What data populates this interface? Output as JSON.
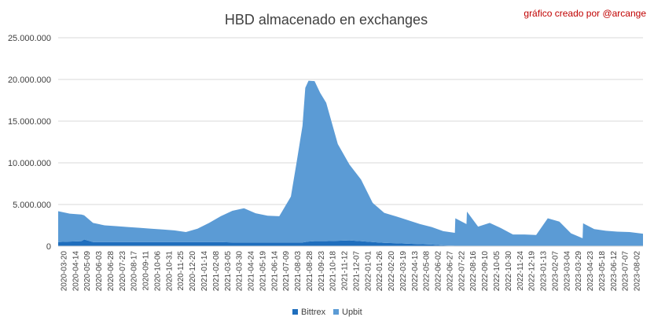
{
  "chart_data": {
    "type": "area",
    "stacked": true,
    "title": "HBD almacenado en exchanges",
    "credit": "gráfico creado por @arcange",
    "xlabel": "",
    "ylabel": "",
    "ylim": [
      0,
      25000000
    ],
    "grid": true,
    "legend_position": "bottom",
    "y_ticks": [
      {
        "value": 0,
        "label": "0"
      },
      {
        "value": 5000000,
        "label": "5.000.000"
      },
      {
        "value": 10000000,
        "label": "10.000.000"
      },
      {
        "value": 15000000,
        "label": "15.000.000"
      },
      {
        "value": 20000000,
        "label": "20.000.000"
      },
      {
        "value": 25000000,
        "label": "25.000.000"
      }
    ],
    "x_tick_labels": [
      "2020-03-20",
      "2020-04-14",
      "2020-05-09",
      "2020-06-03",
      "2020-06-28",
      "2020-07-23",
      "2020-08-17",
      "2020-09-11",
      "2020-10-06",
      "2020-10-31",
      "2020-11-25",
      "2020-12-20",
      "2021-01-14",
      "2021-02-08",
      "2021-03-05",
      "2021-03-30",
      "2021-04-24",
      "2021-05-19",
      "2021-06-14",
      "2021-07-09",
      "2021-08-03",
      "2021-08-28",
      "2021-09-23",
      "2021-10-18",
      "2021-11-12",
      "2021-12-07",
      "2022-01-01",
      "2022-01-26",
      "2022-02-20",
      "2022-03-19",
      "2022-04-13",
      "2022-05-08",
      "2022-06-02",
      "2022-06-27",
      "2022-07-22",
      "2022-08-16",
      "2022-09-10",
      "2022-10-05",
      "2022-10-30",
      "2022-11-24",
      "2022-12-19",
      "2023-01-13",
      "2023-02-07",
      "2023-03-04",
      "2023-03-29",
      "2023-04-23",
      "2023-05-18",
      "2023-06-12",
      "2023-07-07",
      "2023-08-02"
    ],
    "x": [
      "2020-03-20",
      "2020-04-14",
      "2020-05-09",
      "2020-05-15",
      "2020-06-03",
      "2020-06-28",
      "2020-07-23",
      "2020-08-17",
      "2020-09-11",
      "2020-10-06",
      "2020-10-31",
      "2020-11-25",
      "2020-12-20",
      "2021-01-14",
      "2021-02-08",
      "2021-03-05",
      "2021-03-30",
      "2021-04-24",
      "2021-05-19",
      "2021-06-14",
      "2021-07-09",
      "2021-08-03",
      "2021-08-15",
      "2021-08-28",
      "2021-09-03",
      "2021-09-10",
      "2021-09-23",
      "2021-10-05",
      "2021-10-18",
      "2021-11-12",
      "2021-12-07",
      "2022-01-01",
      "2022-01-26",
      "2022-02-20",
      "2022-03-19",
      "2022-04-13",
      "2022-05-08",
      "2022-06-02",
      "2022-06-27",
      "2022-07-22",
      "2022-07-23",
      "2022-08-16",
      "2022-08-17",
      "2022-09-10",
      "2022-10-05",
      "2022-10-30",
      "2022-11-24",
      "2022-12-19",
      "2023-01-13",
      "2023-02-07",
      "2023-03-04",
      "2023-03-29",
      "2023-04-23",
      "2023-04-24",
      "2023-05-18",
      "2023-06-12",
      "2023-07-07",
      "2023-08-02",
      "2023-08-31"
    ],
    "series": [
      {
        "name": "Bittrex",
        "color": "#1f6ebd",
        "values": [
          500000,
          550000,
          600000,
          800000,
          500000,
          500000,
          500000,
          500000,
          500000,
          500000,
          500000,
          500000,
          500000,
          500000,
          500000,
          500000,
          450000,
          450000,
          450000,
          450000,
          450000,
          450000,
          450000,
          450000,
          500000,
          550000,
          600000,
          600000,
          600000,
          650000,
          700000,
          600000,
          500000,
          400000,
          350000,
          300000,
          250000,
          200000,
          100000,
          50000,
          50000,
          50000,
          50000,
          50000,
          50000,
          50000,
          50000,
          50000,
          50000,
          50000,
          50000,
          50000,
          50000,
          50000,
          50000,
          50000,
          50000,
          50000,
          50000
        ]
      },
      {
        "name": "Upbit",
        "color": "#5b9bd5",
        "values": [
          3700000,
          3350000,
          3200000,
          2900000,
          2300000,
          2000000,
          1900000,
          1800000,
          1700000,
          1600000,
          1500000,
          1400000,
          1200000,
          1600000,
          2300000,
          3100000,
          3800000,
          4100000,
          3500000,
          3200000,
          3150000,
          5500000,
          9500000,
          14000000,
          18500000,
          19300000,
          19200000,
          17800000,
          16600000,
          11600000,
          9100000,
          7400000,
          4700000,
          3600000,
          3200000,
          2800000,
          2400000,
          2100000,
          1700000,
          1550000,
          3300000,
          2600000,
          4100000,
          2300000,
          2750000,
          2100000,
          1350000,
          1350000,
          1300000,
          3300000,
          2900000,
          1500000,
          900000,
          2700000,
          2000000,
          1800000,
          1700000,
          1650000,
          1450000
        ]
      }
    ]
  }
}
